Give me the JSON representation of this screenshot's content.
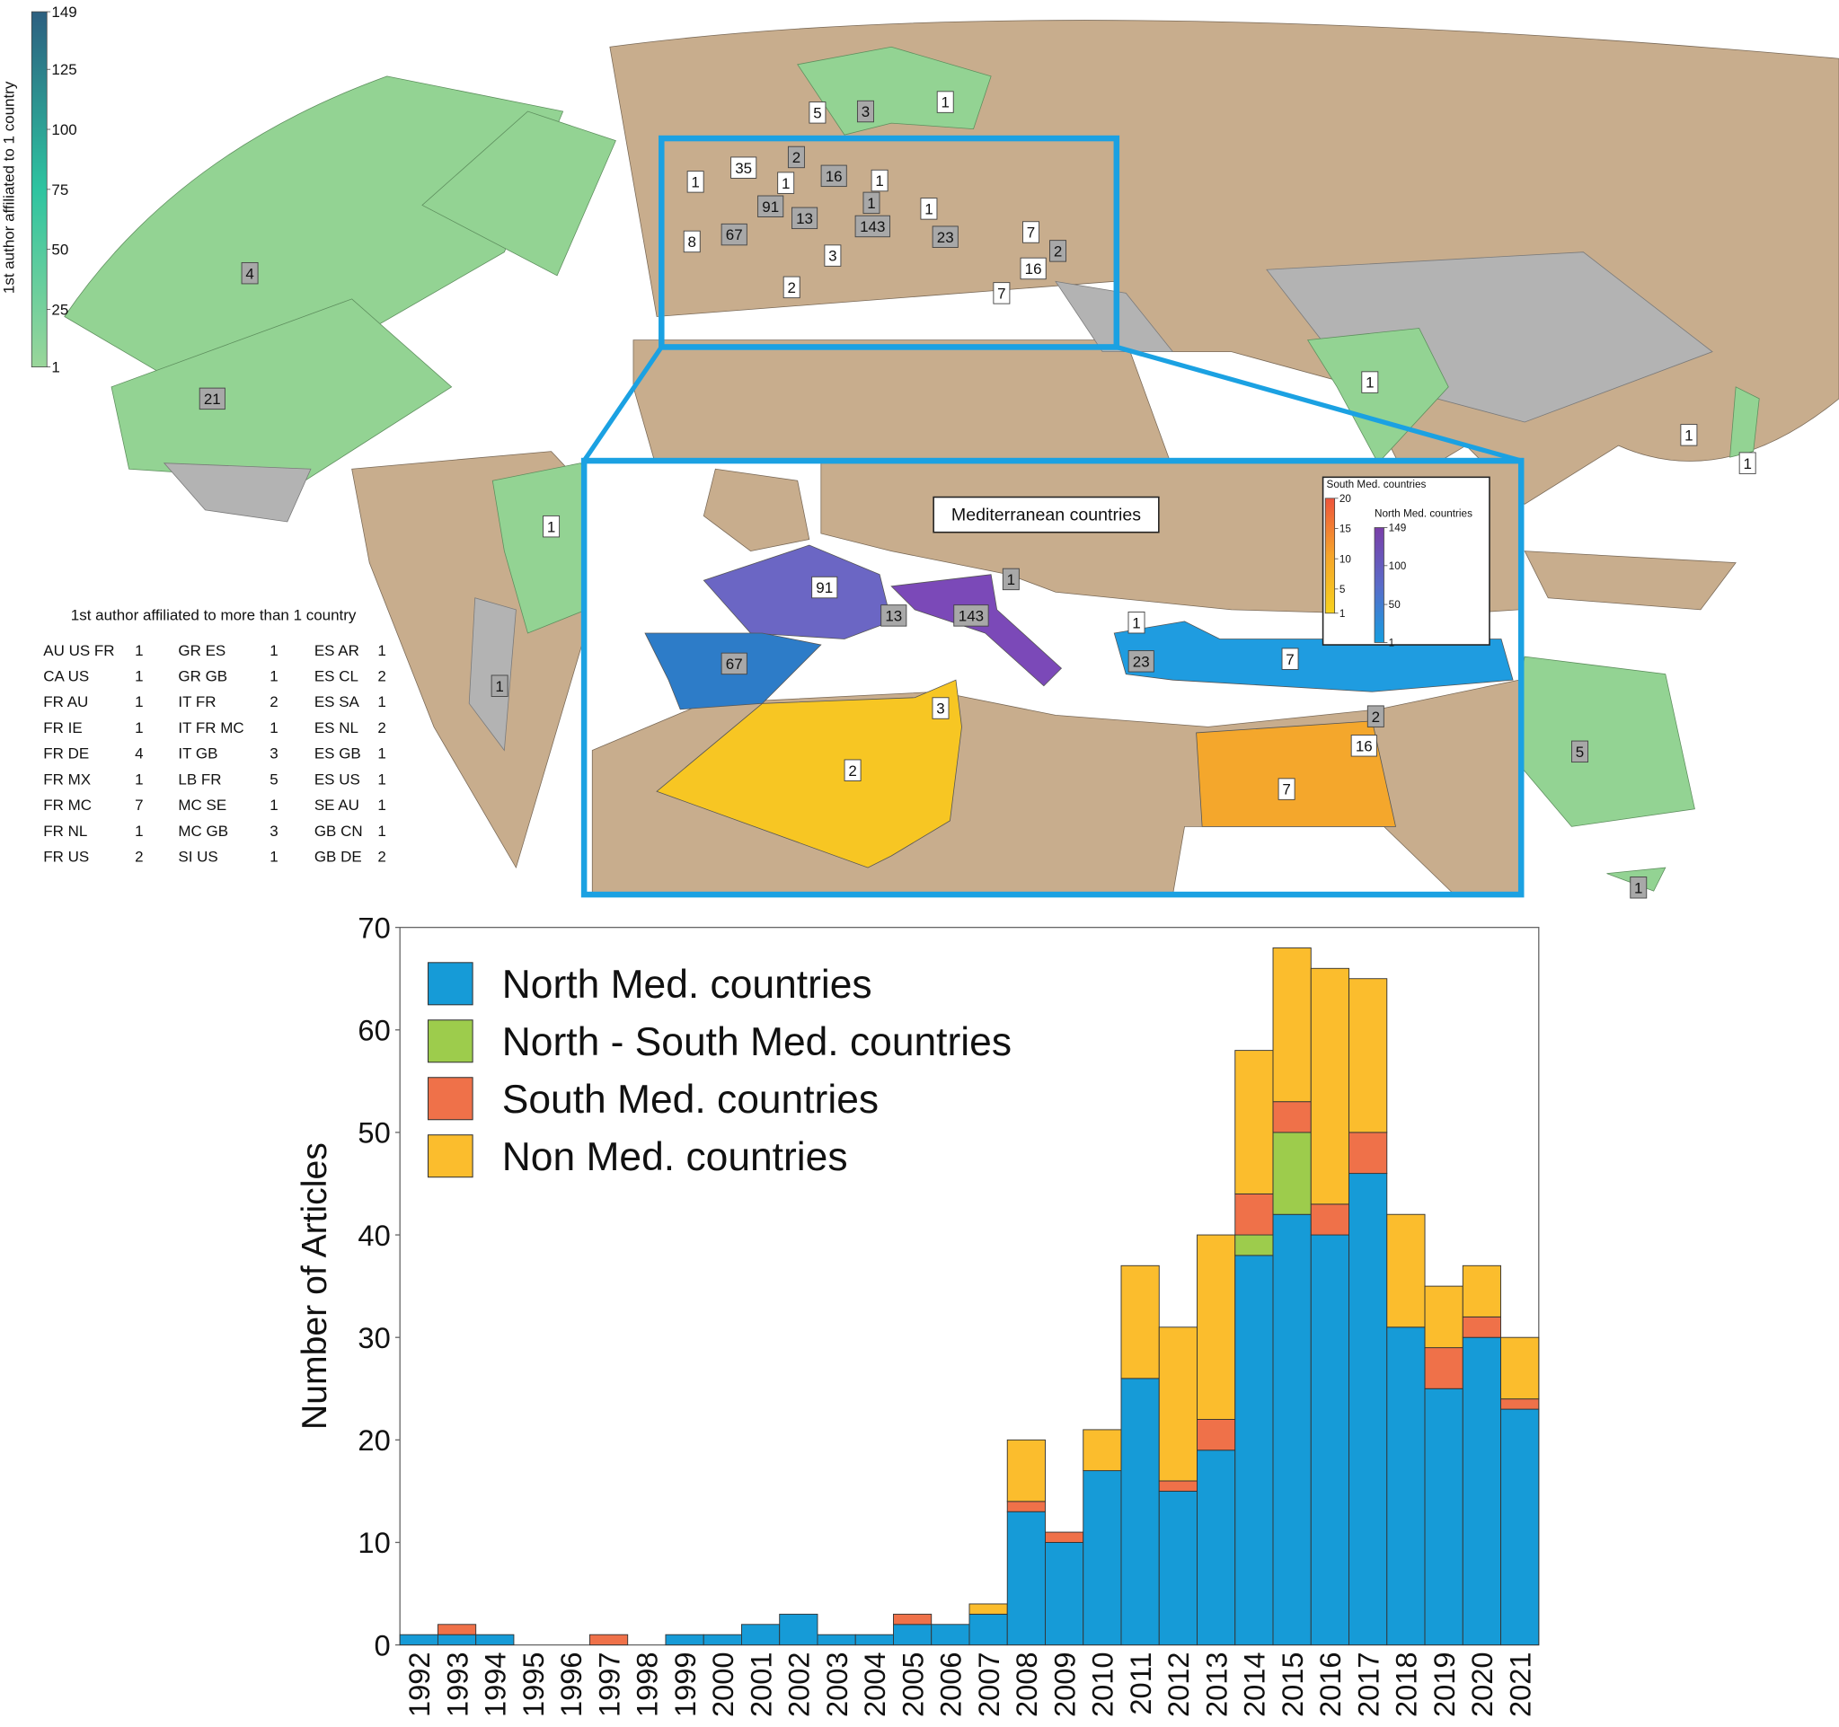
{
  "chart_data": [
    {
      "type": "map",
      "colorbar": {
        "title": "1st author affiliated to 1 country",
        "range": [
          1,
          149
        ],
        "ticks": [
          149,
          125,
          100,
          75,
          50,
          25,
          1
        ],
        "colors": [
          "#9ad69a",
          "#2ec4a0",
          "#2c5f80"
        ]
      },
      "labels": [
        1,
        5,
        3,
        2,
        35,
        1,
        1,
        16,
        1,
        91,
        13,
        1,
        143,
        1,
        8,
        67,
        23,
        7,
        2,
        16,
        3,
        2,
        7,
        4,
        21,
        1,
        1,
        1,
        1,
        1,
        5,
        1
      ],
      "table": {
        "title": "1st author affiliated to more than 1 country",
        "rows": [
          [
            [
              "AU US FR",
              1
            ],
            [
              "GR ES",
              1
            ],
            [
              "ES AR",
              1
            ]
          ],
          [
            [
              "CA US",
              1
            ],
            [
              "GR GB",
              1
            ],
            [
              "ES CL",
              2
            ]
          ],
          [
            [
              "FR AU",
              1
            ],
            [
              "IT FR",
              2
            ],
            [
              "ES SA",
              1
            ]
          ],
          [
            [
              "FR IE",
              1
            ],
            [
              "IT FR MC",
              1
            ],
            [
              "ES NL",
              2
            ]
          ],
          [
            [
              "FR DE",
              4
            ],
            [
              "IT GB",
              3
            ],
            [
              "ES GB",
              1
            ]
          ],
          [
            [
              "FR MX",
              1
            ],
            [
              "LB FR",
              5
            ],
            [
              "ES US",
              1
            ]
          ],
          [
            [
              "FR MC",
              7
            ],
            [
              "MC SE",
              1
            ],
            [
              "SE AU",
              1
            ]
          ],
          [
            [
              "FR NL",
              1
            ],
            [
              "MC GB",
              3
            ],
            [
              "GB CN",
              1
            ]
          ],
          [
            [
              "FR US",
              2
            ],
            [
              "SI US",
              1
            ],
            [
              "GB DE",
              2
            ]
          ]
        ]
      },
      "inset": {
        "title": "Mediterranean countries",
        "labels": [
          91,
          1,
          13,
          143,
          1,
          67,
          23,
          7,
          3,
          2,
          16,
          2,
          7
        ],
        "colorbars": [
          {
            "title": "South Med. countries",
            "range": [
              1,
              20
            ],
            "ticks": [
              20,
              15,
              10,
              5,
              1
            ],
            "colors": [
              "#f7d21e",
              "#f6a52a",
              "#ee553c"
            ]
          },
          {
            "title": "North Med. countries",
            "range": [
              1,
              149
            ],
            "ticks": [
              149,
              100,
              50,
              1
            ],
            "colors": [
              "#159ee0",
              "#5a6bc8",
              "#7a3fa8"
            ]
          }
        ]
      }
    },
    {
      "type": "bar",
      "stacked": true,
      "ylabel": "Number of Articles",
      "legend": "upper left",
      "categories": [
        "1992",
        "1993",
        "1994",
        "1995",
        "1996",
        "1997",
        "1998",
        "1999",
        "2000",
        "2001",
        "2002",
        "2003",
        "2004",
        "2005",
        "2006",
        "2007",
        "2008",
        "2009",
        "2010",
        "2011",
        "2012",
        "2013",
        "2014",
        "2015",
        "2016",
        "2017",
        "2018",
        "2019",
        "2020",
        "2021"
      ],
      "ylim": [
        0,
        70
      ],
      "yticks": [
        0,
        10,
        20,
        30,
        40,
        50,
        60,
        70
      ],
      "series": [
        {
          "name": "North Med. countries",
          "color": "#169bd7",
          "values": [
            1,
            1,
            1,
            0,
            0,
            0,
            0,
            1,
            1,
            2,
            3,
            1,
            1,
            2,
            2,
            3,
            13,
            10,
            17,
            26,
            15,
            19,
            38,
            42,
            40,
            46,
            31,
            25,
            30,
            23
          ]
        },
        {
          "name": "North - South Med. countries",
          "color": "#9dcc4c",
          "values": [
            0,
            0,
            0,
            0,
            0,
            0,
            0,
            0,
            0,
            0,
            0,
            0,
            0,
            0,
            0,
            0,
            0,
            0,
            0,
            0,
            0,
            0,
            2,
            8,
            0,
            0,
            0,
            0,
            0,
            0
          ]
        },
        {
          "name": "South Med. countries",
          "color": "#ef7149",
          "values": [
            0,
            1,
            0,
            0,
            0,
            1,
            0,
            0,
            0,
            0,
            0,
            0,
            0,
            1,
            0,
            0,
            1,
            1,
            0,
            0,
            1,
            3,
            4,
            3,
            3,
            4,
            0,
            4,
            2,
            1
          ]
        },
        {
          "name": "Non Med. countries",
          "color": "#fbbd2d",
          "values": [
            0,
            0,
            0,
            0,
            0,
            0,
            0,
            0,
            0,
            0,
            0,
            0,
            0,
            0,
            0,
            1,
            6,
            0,
            4,
            11,
            15,
            18,
            14,
            15,
            23,
            15,
            11,
            6,
            5,
            6
          ]
        }
      ]
    }
  ]
}
